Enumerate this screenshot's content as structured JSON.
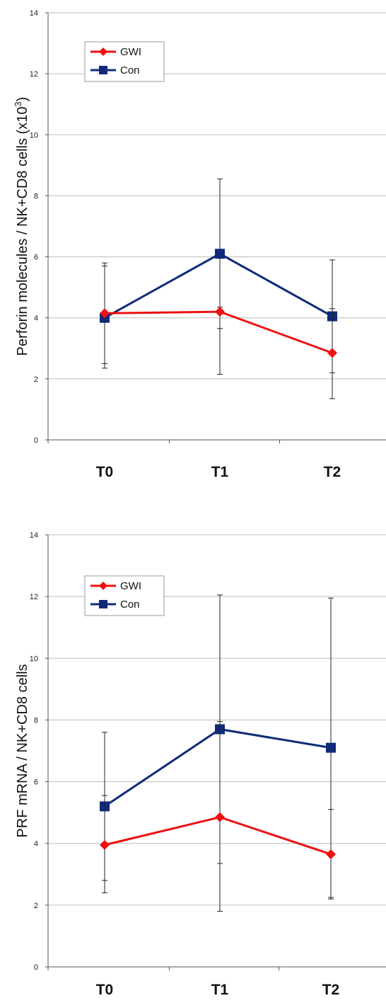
{
  "colors": {
    "gwi": "#ee1111",
    "con": "#102a7a",
    "grid": "#bdbdbd",
    "axis": "#555555",
    "errorbar": "#222222"
  },
  "chart_data": [
    {
      "type": "line",
      "categories": [
        "T0",
        "T1",
        "T2"
      ],
      "ylabel_main": "Perforin molecules / NK+CD8 cells (x10",
      "ylabel_sup": "3",
      "ylabel_end": ")",
      "ylim": [
        0,
        14
      ],
      "yticks": [
        "0",
        "2",
        "4",
        "6",
        "8",
        "10",
        "12",
        "14"
      ],
      "grid": true,
      "legend_position": "top-left",
      "series": [
        {
          "name": "GWI",
          "marker": "diamond",
          "values": [
            4.15,
            4.2,
            2.85
          ],
          "err_low": [
            2.5,
            3.65,
            1.35
          ],
          "err_high": [
            5.8,
            4.35,
            4.3
          ]
        },
        {
          "name": "Con",
          "marker": "square",
          "values": [
            4.0,
            6.1,
            4.05
          ],
          "err_low": [
            2.35,
            2.15,
            2.2
          ],
          "err_high": [
            5.7,
            8.55,
            5.9
          ]
        }
      ]
    },
    {
      "type": "line",
      "categories": [
        "T0",
        "T1",
        "T2"
      ],
      "ylabel_main": "PRF mRNA / NK+CD8 cells",
      "ylabel_sup": "",
      "ylabel_end": "",
      "ylim": [
        0,
        14
      ],
      "yticks": [
        "0",
        "2",
        "4",
        "6",
        "8",
        "10",
        "12",
        "14"
      ],
      "grid": true,
      "legend_position": "top-left",
      "series": [
        {
          "name": "GWI",
          "marker": "diamond",
          "values": [
            3.95,
            4.85,
            3.65
          ],
          "err_low": [
            2.4,
            1.8,
            2.2
          ],
          "err_high": [
            5.55,
            7.95,
            5.1
          ]
        },
        {
          "name": "Con",
          "marker": "square",
          "values": [
            5.2,
            7.7,
            7.1
          ],
          "err_low": [
            2.8,
            3.35,
            2.25
          ],
          "err_high": [
            7.6,
            12.05,
            11.95
          ]
        }
      ]
    }
  ]
}
